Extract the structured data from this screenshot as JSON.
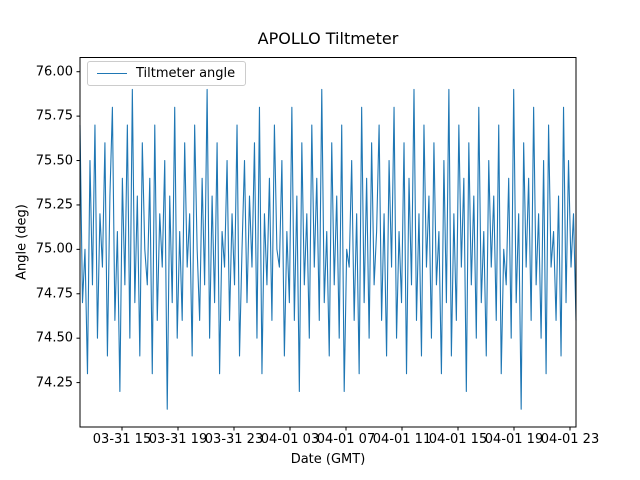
{
  "figure": {
    "background": "#ffffff"
  },
  "chart_data": {
    "type": "line",
    "title": "APOLLO Tiltmeter",
    "xlabel": "Date (GMT)",
    "ylabel": "Angle (deg)",
    "legend_label": "Tiltmeter angle",
    "legend_position": "upper left",
    "line_color": "#1f77b4",
    "axes_color": "#000000",
    "grid": false,
    "x_tick_labels": [
      "03-31 15",
      "03-31 19",
      "03-31 23",
      "04-01 03",
      "04-01 07",
      "04-01 11",
      "04-01 15",
      "04-01 19",
      "04-01 23"
    ],
    "y_tick_labels": [
      "74.25",
      "74.50",
      "74.75",
      "75.00",
      "75.25",
      "75.50",
      "75.75",
      "76.00"
    ],
    "ylim": [
      74.0,
      76.08
    ],
    "values": [
      75.7,
      74.7,
      75.0,
      74.3,
      75.5,
      74.8,
      75.7,
      74.5,
      75.2,
      74.9,
      75.6,
      74.4,
      75.3,
      75.8,
      74.6,
      75.1,
      74.2,
      75.4,
      74.8,
      75.7,
      74.5,
      75.9,
      74.7,
      75.3,
      74.4,
      75.6,
      75.0,
      74.8,
      75.4,
      74.3,
      75.7,
      74.6,
      75.2,
      74.9,
      75.5,
      74.1,
      75.3,
      74.7,
      75.8,
      74.5,
      75.1,
      74.6,
      75.6,
      74.9,
      75.2,
      74.4,
      75.7,
      75.0,
      74.6,
      75.4,
      74.8,
      75.9,
      74.5,
      75.3,
      74.7,
      75.6,
      74.3,
      75.1,
      74.9,
      75.5,
      74.6,
      75.2,
      74.8,
      75.7,
      74.4,
      75.0,
      75.5,
      74.7,
      75.3,
      74.9,
      75.6,
      74.5,
      75.8,
      74.3,
      75.2,
      74.8,
      75.4,
      74.6,
      75.7,
      75.0,
      74.9,
      75.5,
      74.4,
      75.1,
      74.7,
      75.8,
      74.6,
      75.3,
      74.2,
      75.6,
      74.8,
      75.2,
      74.5,
      75.7,
      74.9,
      75.4,
      74.6,
      75.9,
      74.7,
      75.1,
      74.4,
      75.6,
      74.8,
      75.3,
      74.5,
      75.7,
      74.2,
      75.0,
      74.9,
      75.5,
      74.6,
      75.2,
      74.3,
      75.8,
      74.7,
      75.4,
      74.5,
      75.6,
      74.8,
      75.1,
      75.7,
      74.6,
      75.2,
      74.4,
      75.5,
      74.9,
      75.8,
      74.5,
      75.1,
      74.7,
      75.6,
      74.3,
      75.4,
      74.8,
      75.9,
      74.6,
      75.2,
      74.4,
      75.7,
      74.9,
      75.3,
      74.5,
      75.6,
      74.8,
      75.1,
      74.3,
      75.5,
      74.7,
      75.9,
      74.4,
      75.2,
      74.6,
      75.7,
      74.9,
      75.4,
      74.2,
      75.6,
      74.8,
      75.3,
      74.5,
      75.8,
      74.7,
      75.1,
      74.4,
      75.5,
      74.9,
      75.3,
      74.6,
      75.7,
      74.3,
      75.0,
      74.8,
      75.4,
      74.5,
      75.9,
      74.7,
      75.2,
      74.1,
      75.6,
      74.9,
      75.4,
      74.6,
      75.8,
      74.8,
      75.2,
      74.5,
      75.5,
      74.3,
      75.7,
      74.9,
      75.1,
      74.6,
      75.3,
      74.4,
      75.8,
      74.7,
      75.5,
      74.9,
      75.2,
      74.6
    ]
  }
}
